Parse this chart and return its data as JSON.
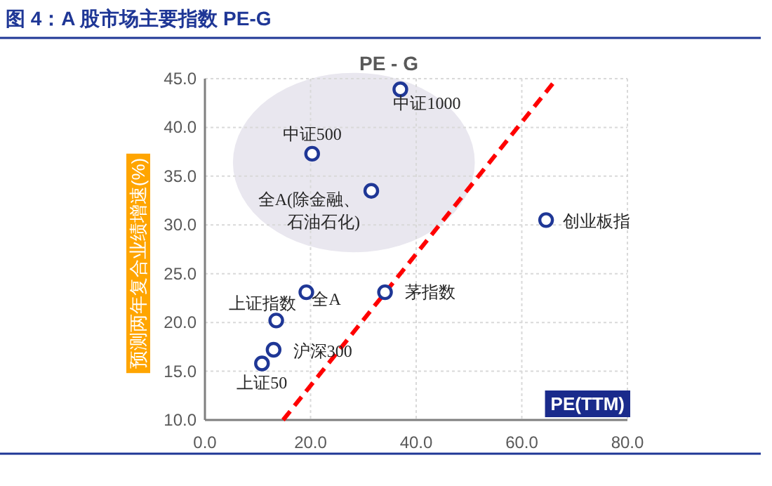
{
  "chart_data": {
    "type": "scatter",
    "title": "图 4：A 股市场主要指数 PE-G",
    "subtitle": "PE - G",
    "xlabel": "PE(TTM)",
    "ylabel": "预测两年复合业绩增速(%)",
    "xlim": [
      0,
      80
    ],
    "ylim": [
      10,
      45
    ],
    "xticks": [
      {
        "value": 0,
        "label": "0.0"
      },
      {
        "value": 20,
        "label": "20.0"
      },
      {
        "value": 40,
        "label": "40.0"
      },
      {
        "value": 60,
        "label": "60.0"
      },
      {
        "value": 80,
        "label": "80.0"
      }
    ],
    "yticks": [
      {
        "value": 10,
        "label": "10.0"
      },
      {
        "value": 15,
        "label": "15.0"
      },
      {
        "value": 20,
        "label": "20.0"
      },
      {
        "value": 25,
        "label": "25.0"
      },
      {
        "value": 30,
        "label": "30.0"
      },
      {
        "value": 35,
        "label": "35.0"
      },
      {
        "value": 40,
        "label": "40.0"
      },
      {
        "value": 45,
        "label": "45.0"
      }
    ],
    "grid": true,
    "series": [
      {
        "color": "#1f3796",
        "marker": "circle",
        "x": [
          37.0,
          20.3,
          31.5,
          64.6,
          19.2,
          34.1,
          13.5,
          13.0,
          10.8
        ],
        "values": [
          43.9,
          37.3,
          33.5,
          30.5,
          23.1,
          23.1,
          20.2,
          17.2,
          15.8
        ]
      },
      {
        "type": "line",
        "color": "#ff0000",
        "line_style": "dashed",
        "x": [
          14.8,
          66.6
        ],
        "values": [
          10,
          45
        ]
      }
    ],
    "annotations": [
      {
        "text": "中证1000",
        "x": 37.0,
        "y": 43.9
      },
      {
        "text": "中证500",
        "x": 20.3,
        "y": 37.3
      },
      {
        "text": "全A(除金融、石油石化)",
        "x": 31.5,
        "y": 33.5
      },
      {
        "text": "创业板指",
        "x": 64.6,
        "y": 30.5
      },
      {
        "text": "全A",
        "x": 19.2,
        "y": 23.1
      },
      {
        "text": "茅指数",
        "x": 34.1,
        "y": 23.1
      },
      {
        "text": "上证指数",
        "x": 13.5,
        "y": 20.2
      },
      {
        "text": "沪深300",
        "x": 13.0,
        "y": 17.2
      },
      {
        "text": "上证50",
        "x": 10.8,
        "y": 15.8
      }
    ]
  }
}
